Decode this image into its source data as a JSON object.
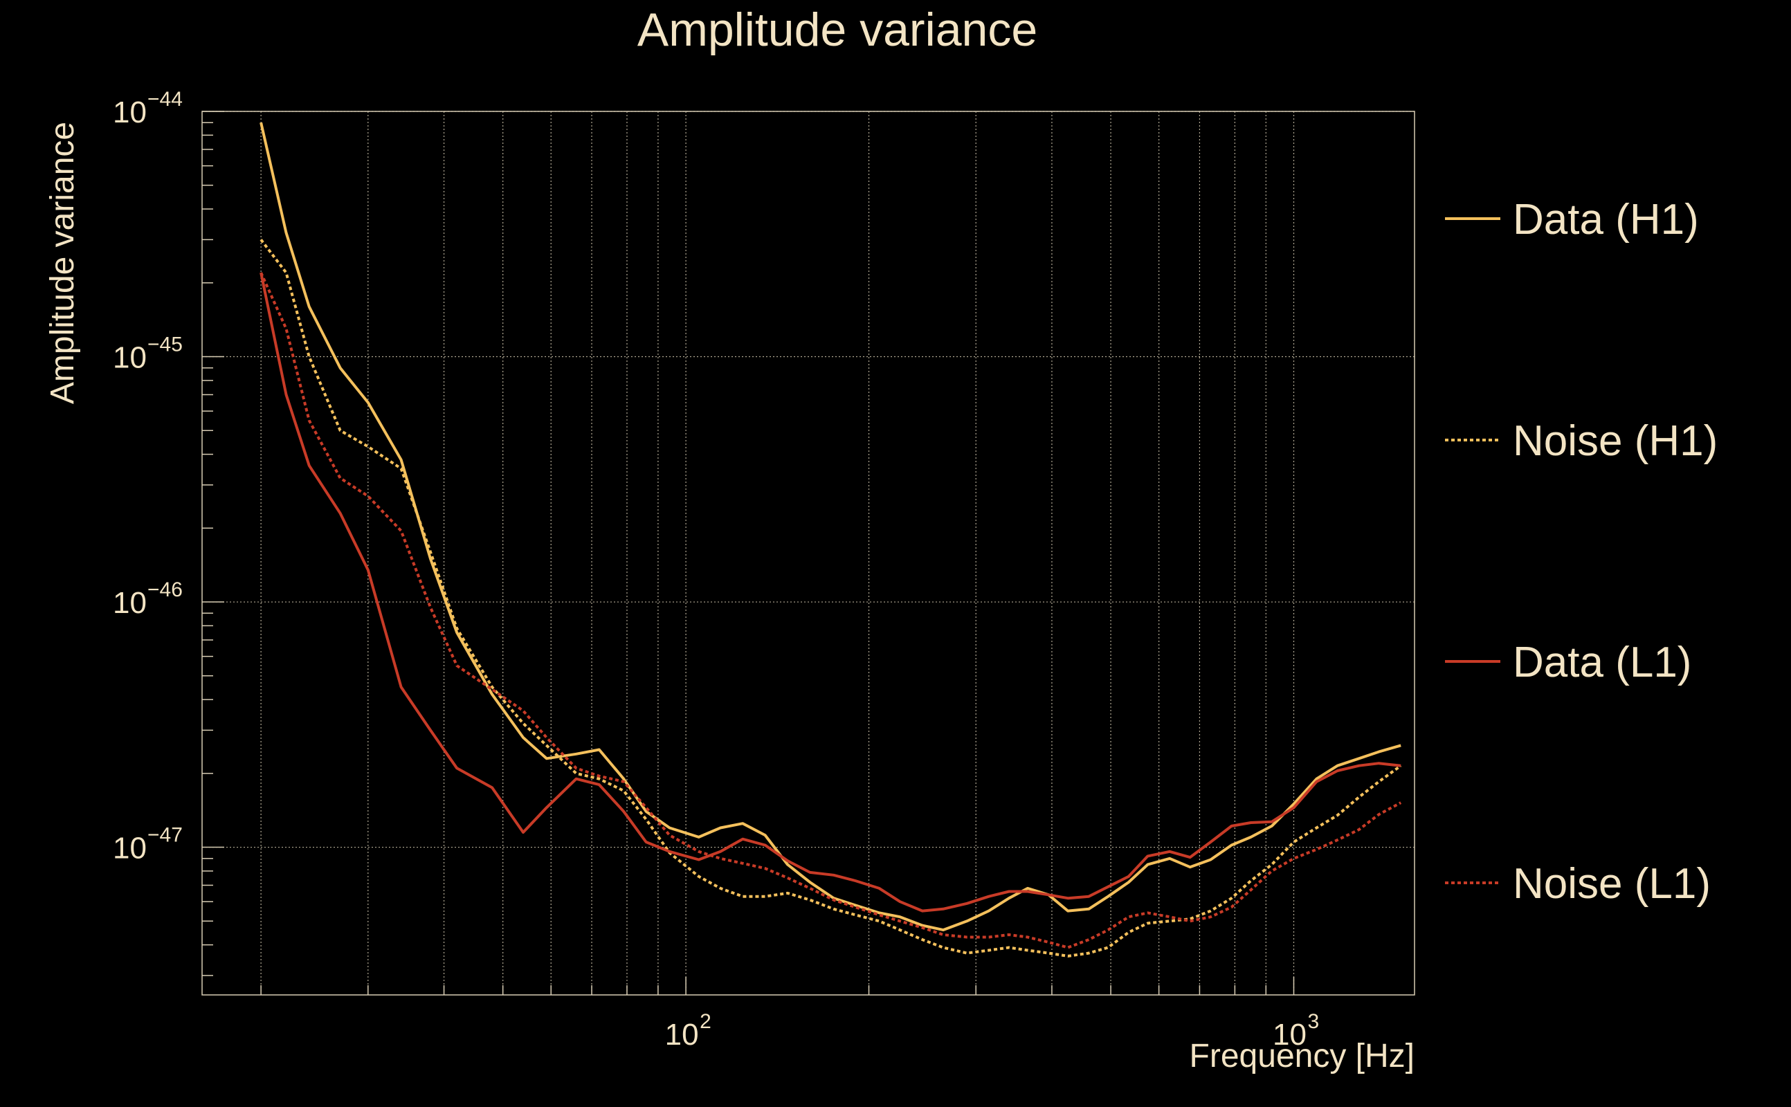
{
  "chart_data": {
    "type": "line",
    "title": "Amplitude variance",
    "xlabel": "Frequency [Hz]",
    "ylabel": "Amplitude variance",
    "x_scale": "log",
    "y_scale": "log",
    "xlim": [
      16,
      1580
    ],
    "ylim": [
      2.5e-48,
      1e-44
    ],
    "grid": true,
    "legend_position": "right",
    "x_ticks": [
      {
        "base": "10",
        "exp": "2",
        "value": 100
      },
      {
        "base": "10",
        "exp": "3",
        "value": 1000
      }
    ],
    "y_ticks": [
      {
        "base": "10",
        "exp": "−44",
        "value": 1e-44
      },
      {
        "base": "10",
        "exp": "−45",
        "value": 1e-45
      },
      {
        "base": "10",
        "exp": "−46",
        "value": 1e-46
      },
      {
        "base": "10",
        "exp": "−47",
        "value": 1e-47
      }
    ],
    "series": [
      {
        "name": "Data (H1)",
        "color": "#f4c05c",
        "dash": "solid",
        "points": [
          [
            20,
            9e-45
          ],
          [
            22,
            3.2e-45
          ],
          [
            24,
            1.6e-45
          ],
          [
            27,
            9e-46
          ],
          [
            30,
            6.5e-46
          ],
          [
            34,
            3.8e-46
          ],
          [
            38,
            1.5e-46
          ],
          [
            42,
            7.5e-47
          ],
          [
            48,
            4.2e-47
          ],
          [
            54,
            2.8e-47
          ],
          [
            59,
            2.3e-47
          ],
          [
            66,
            2.4e-47
          ],
          [
            72,
            2.5e-47
          ],
          [
            79,
            1.9e-47
          ],
          [
            86,
            1.4e-47
          ],
          [
            94,
            1.2e-47
          ],
          [
            105,
            1.1e-47
          ],
          [
            114,
            1.2e-47
          ],
          [
            124,
            1.25e-47
          ],
          [
            135,
            1.12e-47
          ],
          [
            147,
            8.5e-48
          ],
          [
            160,
            7.2e-48
          ],
          [
            175,
            6.2e-48
          ],
          [
            190,
            5.8e-48
          ],
          [
            208,
            5.4e-48
          ],
          [
            225,
            5.2e-48
          ],
          [
            245,
            4.8e-48
          ],
          [
            265,
            4.6e-48
          ],
          [
            290,
            5e-48
          ],
          [
            315,
            5.5e-48
          ],
          [
            340,
            6.2e-48
          ],
          [
            365,
            6.8e-48
          ],
          [
            395,
            6.4e-48
          ],
          [
            425,
            5.5e-48
          ],
          [
            460,
            5.6e-48
          ],
          [
            495,
            6.3e-48
          ],
          [
            535,
            7.2e-48
          ],
          [
            575,
            8.5e-48
          ],
          [
            625,
            9e-48
          ],
          [
            675,
            8.3e-48
          ],
          [
            730,
            8.9e-48
          ],
          [
            790,
            1.02e-47
          ],
          [
            850,
            1.1e-47
          ],
          [
            920,
            1.22e-47
          ],
          [
            1000,
            1.5e-47
          ],
          [
            1090,
            1.9e-47
          ],
          [
            1180,
            2.15e-47
          ],
          [
            1280,
            2.3e-47
          ],
          [
            1380,
            2.45e-47
          ],
          [
            1500,
            2.6e-47
          ]
        ]
      },
      {
        "name": "Noise (H1)",
        "color": "#f4c05c",
        "dash": "dotted",
        "points": [
          [
            20,
            3e-45
          ],
          [
            22,
            2.2e-45
          ],
          [
            24,
            1e-45
          ],
          [
            27,
            5e-46
          ],
          [
            30,
            4.3e-46
          ],
          [
            34,
            3.5e-46
          ],
          [
            38,
            1.6e-46
          ],
          [
            42,
            7.8e-47
          ],
          [
            48,
            4.5e-47
          ],
          [
            54,
            3.2e-47
          ],
          [
            59,
            2.6e-47
          ],
          [
            66,
            2e-47
          ],
          [
            72,
            1.9e-47
          ],
          [
            79,
            1.7e-47
          ],
          [
            86,
            1.3e-47
          ],
          [
            94,
            9.5e-48
          ],
          [
            105,
            7.6e-48
          ],
          [
            114,
            6.8e-48
          ],
          [
            124,
            6.3e-48
          ],
          [
            135,
            6.3e-48
          ],
          [
            147,
            6.5e-48
          ],
          [
            160,
            6.1e-48
          ],
          [
            175,
            5.6e-48
          ],
          [
            190,
            5.3e-48
          ],
          [
            208,
            5e-48
          ],
          [
            225,
            4.6e-48
          ],
          [
            245,
            4.2e-48
          ],
          [
            265,
            3.9e-48
          ],
          [
            290,
            3.7e-48
          ],
          [
            315,
            3.8e-48
          ],
          [
            340,
            3.9e-48
          ],
          [
            365,
            3.8e-48
          ],
          [
            395,
            3.7e-48
          ],
          [
            425,
            3.6e-48
          ],
          [
            460,
            3.7e-48
          ],
          [
            495,
            3.9e-48
          ],
          [
            535,
            4.5e-48
          ],
          [
            575,
            4.9e-48
          ],
          [
            625,
            5e-48
          ],
          [
            675,
            5.1e-48
          ],
          [
            730,
            5.5e-48
          ],
          [
            790,
            6.2e-48
          ],
          [
            850,
            7.3e-48
          ],
          [
            920,
            8.5e-48
          ],
          [
            1000,
            1.05e-47
          ],
          [
            1090,
            1.2e-47
          ],
          [
            1180,
            1.35e-47
          ],
          [
            1280,
            1.6e-47
          ],
          [
            1380,
            1.85e-47
          ],
          [
            1500,
            2.15e-47
          ]
        ]
      },
      {
        "name": "Data (L1)",
        "color": "#c83b27",
        "dash": "solid",
        "points": [
          [
            20,
            2.2e-45
          ],
          [
            22,
            7e-46
          ],
          [
            24,
            3.6e-46
          ],
          [
            27,
            2.3e-46
          ],
          [
            30,
            1.35e-46
          ],
          [
            34,
            4.5e-47
          ],
          [
            38,
            3e-47
          ],
          [
            42,
            2.1e-47
          ],
          [
            48,
            1.75e-47
          ],
          [
            54,
            1.15e-47
          ],
          [
            59,
            1.45e-47
          ],
          [
            66,
            1.9e-47
          ],
          [
            72,
            1.8e-47
          ],
          [
            79,
            1.4e-47
          ],
          [
            86,
            1.05e-47
          ],
          [
            94,
            9.6e-48
          ],
          [
            105,
            8.9e-48
          ],
          [
            114,
            9.6e-48
          ],
          [
            124,
            1.08e-47
          ],
          [
            135,
            1.02e-47
          ],
          [
            147,
            8.8e-48
          ],
          [
            160,
            7.9e-48
          ],
          [
            175,
            7.7e-48
          ],
          [
            190,
            7.3e-48
          ],
          [
            208,
            6.8e-48
          ],
          [
            225,
            6e-48
          ],
          [
            245,
            5.5e-48
          ],
          [
            265,
            5.6e-48
          ],
          [
            290,
            5.9e-48
          ],
          [
            315,
            6.3e-48
          ],
          [
            340,
            6.6e-48
          ],
          [
            365,
            6.6e-48
          ],
          [
            395,
            6.4e-48
          ],
          [
            425,
            6.2e-48
          ],
          [
            460,
            6.3e-48
          ],
          [
            495,
            6.9e-48
          ],
          [
            535,
            7.6e-48
          ],
          [
            575,
            9.2e-48
          ],
          [
            625,
            9.6e-48
          ],
          [
            675,
            9.1e-48
          ],
          [
            730,
            1.05e-47
          ],
          [
            790,
            1.22e-47
          ],
          [
            850,
            1.26e-47
          ],
          [
            920,
            1.27e-47
          ],
          [
            1000,
            1.45e-47
          ],
          [
            1090,
            1.85e-47
          ],
          [
            1180,
            2.05e-47
          ],
          [
            1280,
            2.15e-47
          ],
          [
            1380,
            2.2e-47
          ],
          [
            1500,
            2.15e-47
          ]
        ]
      },
      {
        "name": "Noise (L1)",
        "color": "#c83b27",
        "dash": "dotted",
        "points": [
          [
            20,
            2.2e-45
          ],
          [
            22,
            1.3e-45
          ],
          [
            24,
            5.5e-46
          ],
          [
            27,
            3.2e-46
          ],
          [
            30,
            2.7e-46
          ],
          [
            34,
            1.95e-46
          ],
          [
            38,
            9.5e-47
          ],
          [
            42,
            5.5e-47
          ],
          [
            48,
            4.4e-47
          ],
          [
            54,
            3.6e-47
          ],
          [
            59,
            2.8e-47
          ],
          [
            66,
            2.1e-47
          ],
          [
            72,
            1.95e-47
          ],
          [
            79,
            1.85e-47
          ],
          [
            86,
            1.45e-47
          ],
          [
            94,
            1.12e-47
          ],
          [
            105,
            9.6e-48
          ],
          [
            114,
            9e-48
          ],
          [
            124,
            8.6e-48
          ],
          [
            135,
            8.2e-48
          ],
          [
            147,
            7.5e-48
          ],
          [
            160,
            6.8e-48
          ],
          [
            175,
            6.1e-48
          ],
          [
            190,
            5.7e-48
          ],
          [
            208,
            5.3e-48
          ],
          [
            225,
            5e-48
          ],
          [
            245,
            4.7e-48
          ],
          [
            265,
            4.4e-48
          ],
          [
            290,
            4.3e-48
          ],
          [
            315,
            4.3e-48
          ],
          [
            340,
            4.4e-48
          ],
          [
            365,
            4.3e-48
          ],
          [
            395,
            4.1e-48
          ],
          [
            425,
            3.9e-48
          ],
          [
            460,
            4.2e-48
          ],
          [
            495,
            4.6e-48
          ],
          [
            535,
            5.2e-48
          ],
          [
            575,
            5.4e-48
          ],
          [
            625,
            5.2e-48
          ],
          [
            675,
            5e-48
          ],
          [
            730,
            5.2e-48
          ],
          [
            790,
            5.7e-48
          ],
          [
            850,
            6.7e-48
          ],
          [
            920,
            8e-48
          ],
          [
            1000,
            9e-48
          ],
          [
            1090,
            9.8e-48
          ],
          [
            1180,
            1.07e-47
          ],
          [
            1280,
            1.18e-47
          ],
          [
            1380,
            1.36e-47
          ],
          [
            1500,
            1.52e-47
          ]
        ]
      }
    ]
  }
}
